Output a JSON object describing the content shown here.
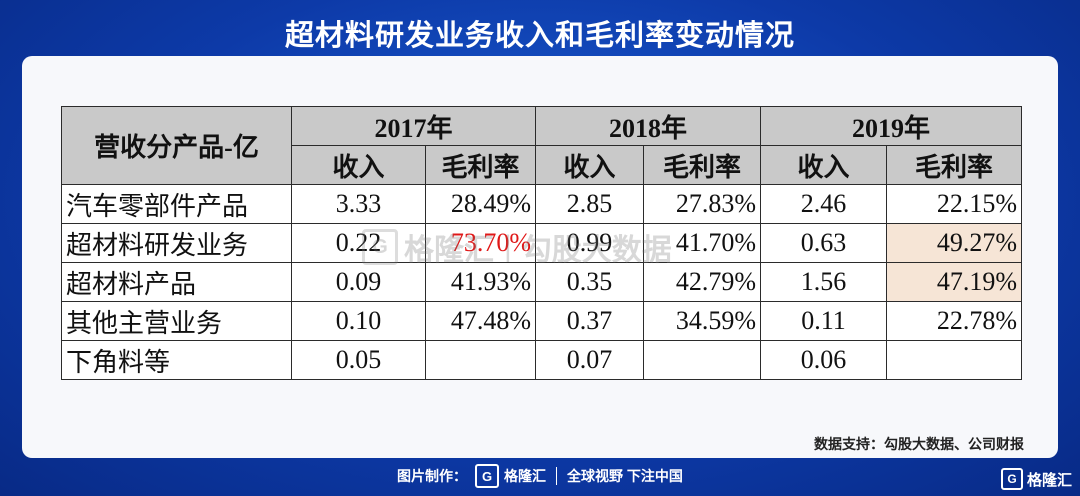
{
  "title": "超材料研发业务收入和毛利率变动情况",
  "table": {
    "corner_header": "营收分产品-亿",
    "years": [
      "2017年",
      "2018年",
      "2019年"
    ],
    "sub_headers": [
      "收入",
      "毛利率",
      "收入",
      "毛利率",
      "收入",
      "毛利率"
    ],
    "rows": [
      {
        "name": "汽车零部件产品",
        "cells": [
          "3.33",
          "28.49%",
          "2.85",
          "27.83%",
          "2.46",
          "22.15%"
        ]
      },
      {
        "name": "超材料研发业务",
        "cells": [
          "0.22",
          "73.70%",
          "0.99",
          "41.70%",
          "0.63",
          "49.27%"
        ]
      },
      {
        "name": "超材料产品",
        "cells": [
          "0.09",
          "41.93%",
          "0.35",
          "42.79%",
          "1.56",
          "47.19%"
        ]
      },
      {
        "name": "其他主营业务",
        "cells": [
          "0.10",
          "47.48%",
          "0.37",
          "34.59%",
          "0.11",
          "22.78%"
        ]
      },
      {
        "name": "下角料等",
        "cells": [
          "0.05",
          "",
          "0.07",
          "",
          "0.06",
          ""
        ]
      }
    ]
  },
  "colors": {
    "highlight_cell": "#f6e5d6",
    "red_text": "#e01818",
    "header_bg": "#c9c9c9"
  },
  "watermark": {
    "brand": "格隆汇",
    "separator": "|",
    "text": "勾股大数据",
    "icon": "G"
  },
  "source": "数据支持：勾股大数据、公司财报",
  "footer": {
    "made_by": "图片制作：",
    "brand": "格隆汇",
    "icon": "G",
    "slogan": "全球视野 下注中国"
  },
  "corner_brand": {
    "icon": "G",
    "text": "格隆汇"
  }
}
